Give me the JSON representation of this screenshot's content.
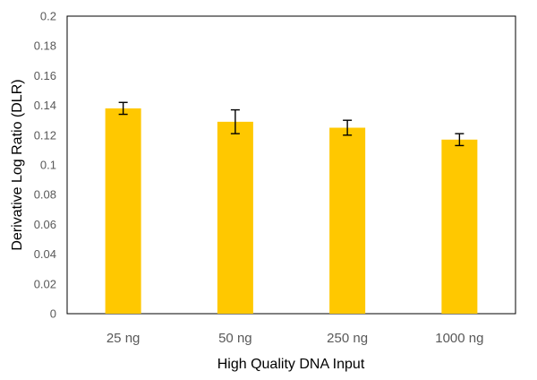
{
  "chart_data": {
    "type": "bar",
    "title": "",
    "xlabel": "High Quality DNA Input",
    "ylabel": "Derivative Log Ratio (DLR)",
    "categories": [
      "25 ng",
      "50 ng",
      "250 ng",
      "1000 ng"
    ],
    "values": [
      0.138,
      0.129,
      0.125,
      0.117
    ],
    "error": [
      0.004,
      0.008,
      0.005,
      0.004
    ],
    "ylim": [
      0,
      0.2
    ],
    "yticks": [
      "0",
      "0.02",
      "0.04",
      "0.06",
      "0.08",
      "0.1",
      "0.12",
      "0.14",
      "0.16",
      "0.18",
      "0.2"
    ],
    "grid": false,
    "legend": "none",
    "bar_color": "#FFC800",
    "error_bar_color": "#000000",
    "axis_color": "#000000"
  }
}
